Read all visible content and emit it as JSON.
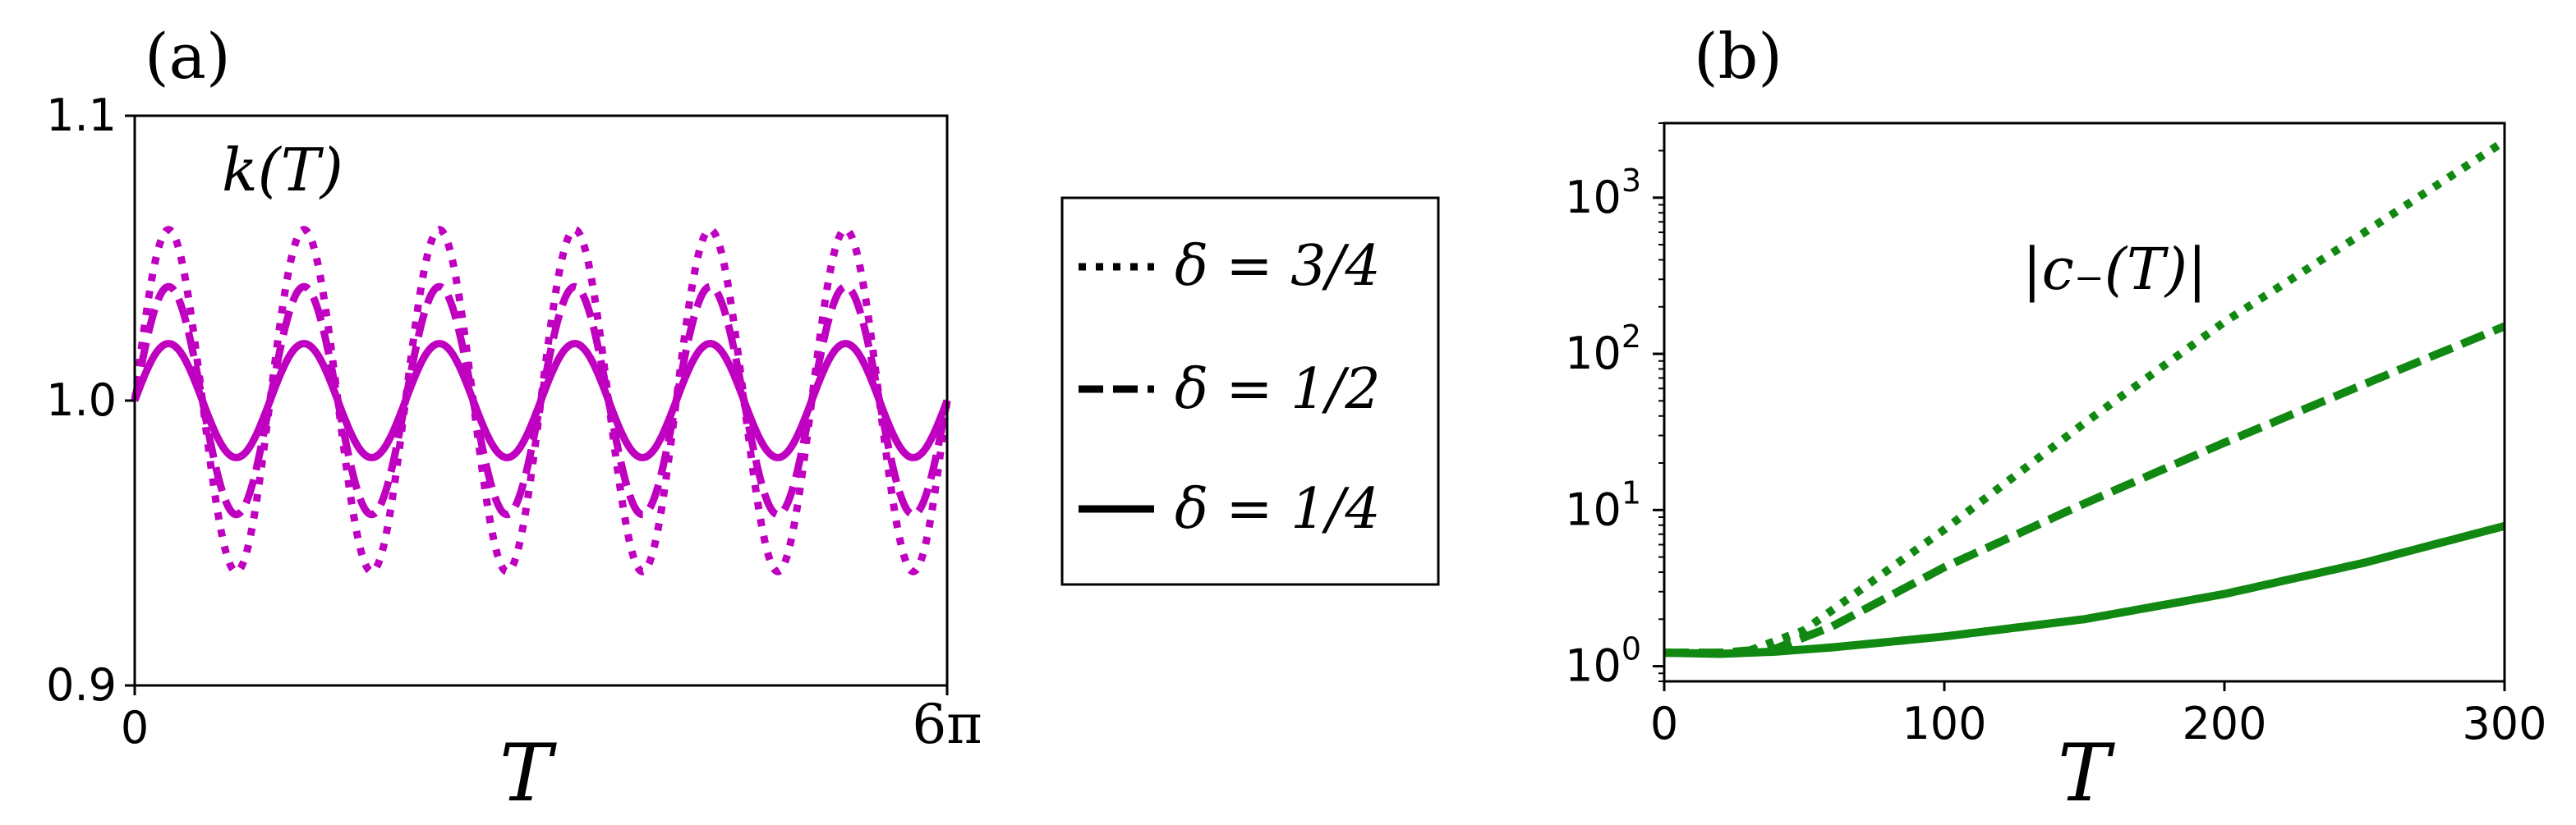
{
  "chart_data": [
    {
      "panel_label": "(a)",
      "type": "line",
      "annotation": "k(T)",
      "xlabel": "T",
      "ylabel": "",
      "xlim": [
        0,
        18.8496
      ],
      "ylim": [
        0.9,
        1.1
      ],
      "x_tick_labels": [
        "0",
        "6π"
      ],
      "y_tick_labels": [
        "0.9",
        "1.0",
        "1.1"
      ],
      "y_ticks": [
        0.9,
        1.0,
        1.1
      ],
      "color": "#c000c0",
      "grid": false,
      "model": "k(T) = 1 + A·sin(2T)",
      "series": [
        {
          "line_style": "dotted",
          "amplitude": 0.06
        },
        {
          "line_style": "dashed",
          "amplitude": 0.04
        },
        {
          "line_style": "solid",
          "amplitude": 0.02
        }
      ]
    },
    {
      "panel_label": "(b)",
      "type": "line",
      "annotation": "|c₋(T)|",
      "xlabel": "T",
      "ylabel": "",
      "xlim": [
        0,
        300
      ],
      "ylim": [
        0.8,
        3000
      ],
      "y_scale": "log",
      "x_ticks": [
        0,
        100,
        200,
        300
      ],
      "x_tick_labels": [
        "0",
        "100",
        "200",
        "300"
      ],
      "y_ticks": [
        1,
        10,
        100,
        1000
      ],
      "y_tick_labels": [
        {
          "base": "10",
          "exp": "0"
        },
        {
          "base": "10",
          "exp": "1"
        },
        {
          "base": "10",
          "exp": "2"
        },
        {
          "base": "10",
          "exp": "3"
        }
      ],
      "color": "#118811",
      "grid": false,
      "series": [
        {
          "line_style": "dotted",
          "x": [
            0,
            20,
            30,
            50,
            100,
            150,
            200,
            250,
            300
          ],
          "y": [
            1.22,
            1.22,
            1.25,
            1.7,
            7.5,
            36,
            160,
            600,
            2300
          ]
        },
        {
          "line_style": "dashed",
          "x": [
            0,
            20,
            40,
            60,
            100,
            150,
            200,
            250,
            300
          ],
          "y": [
            1.22,
            1.22,
            1.3,
            1.8,
            4.3,
            11,
            27,
            64,
            150
          ]
        },
        {
          "line_style": "solid",
          "x": [
            0,
            20,
            40,
            60,
            100,
            150,
            200,
            250,
            300
          ],
          "y": [
            1.22,
            1.2,
            1.24,
            1.32,
            1.55,
            2.0,
            2.9,
            4.6,
            7.9
          ]
        }
      ]
    }
  ],
  "legend": {
    "placement": "center",
    "entries": [
      {
        "line_style": "dotted",
        "label": "δ = 3/4"
      },
      {
        "line_style": "dashed",
        "label": "δ = 1/2"
      },
      {
        "line_style": "solid",
        "label": "δ = 1/4"
      }
    ]
  }
}
